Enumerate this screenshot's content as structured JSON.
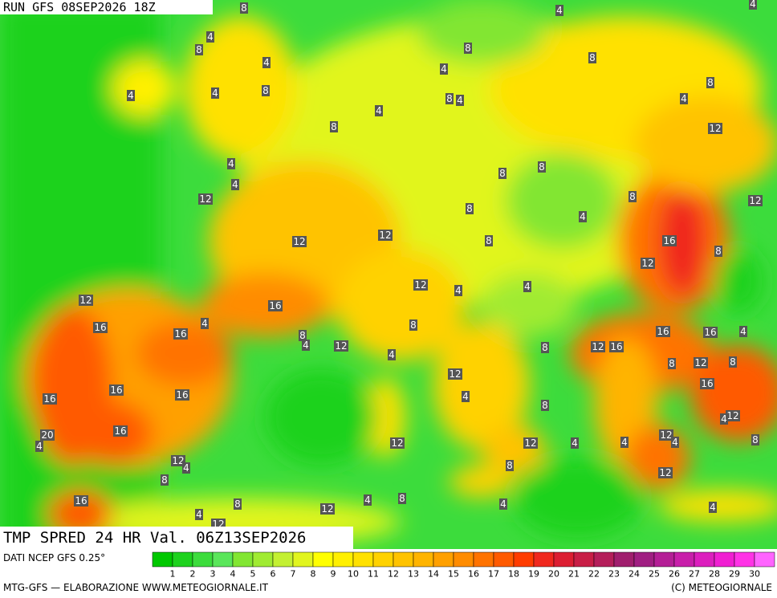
{
  "header": {
    "run": "RUN GFS 08SEP2026 18Z"
  },
  "footer": {
    "title": "TMP SPRED 24 HR Val. 06Z13SEP2026",
    "source": "DATI NCEP GFS 0.25°",
    "credit": "MTG-GFS — ELABORAZIONE WWW.METEOGIORNALE.IT",
    "copyright": "(C) METEOGIORNALE"
  },
  "legend": {
    "ticks": [
      1,
      2,
      3,
      4,
      5,
      6,
      7,
      8,
      9,
      10,
      11,
      12,
      13,
      14,
      15,
      16,
      17,
      18,
      19,
      20,
      21,
      22,
      23,
      24,
      25,
      26,
      27,
      28,
      29,
      30
    ],
    "colors": [
      "#00c800",
      "#1ed21e",
      "#3cdc3c",
      "#5ae65a",
      "#82e632",
      "#a0eb32",
      "#c3f032",
      "#e1f51e",
      "#ffff00",
      "#fff000",
      "#ffe100",
      "#ffd200",
      "#ffc300",
      "#ffb400",
      "#ffa000",
      "#ff8c00",
      "#ff7300",
      "#ff5a00",
      "#ff3c00",
      "#f0281e",
      "#dc1e32",
      "#c81e46",
      "#b41e5a",
      "#a01e6e",
      "#a01e82",
      "#b41e96",
      "#c81eaa",
      "#dc1ebe",
      "#f01ed2",
      "#ff32e6",
      "#ff64ff"
    ]
  },
  "map": {
    "contour_labels": [
      8,
      4,
      4,
      4,
      8,
      8,
      4,
      4,
      8,
      4,
      4,
      8,
      8,
      4,
      8,
      4,
      4,
      8,
      12,
      4,
      8,
      8,
      4,
      12,
      8,
      12,
      8,
      4,
      12,
      12,
      8,
      16,
      8,
      12,
      12,
      4,
      4,
      12,
      16,
      16,
      4,
      16,
      8,
      4,
      12,
      8,
      16,
      16,
      4,
      8,
      12,
      16,
      4,
      8,
      12,
      8,
      12,
      16,
      16,
      16,
      16,
      4,
      8,
      12,
      4,
      16,
      20,
      4,
      12,
      12,
      4,
      4,
      12,
      4,
      8,
      12,
      4,
      8,
      8,
      12,
      16,
      8,
      4,
      8,
      12,
      4,
      4,
      12,
      4
    ]
  }
}
